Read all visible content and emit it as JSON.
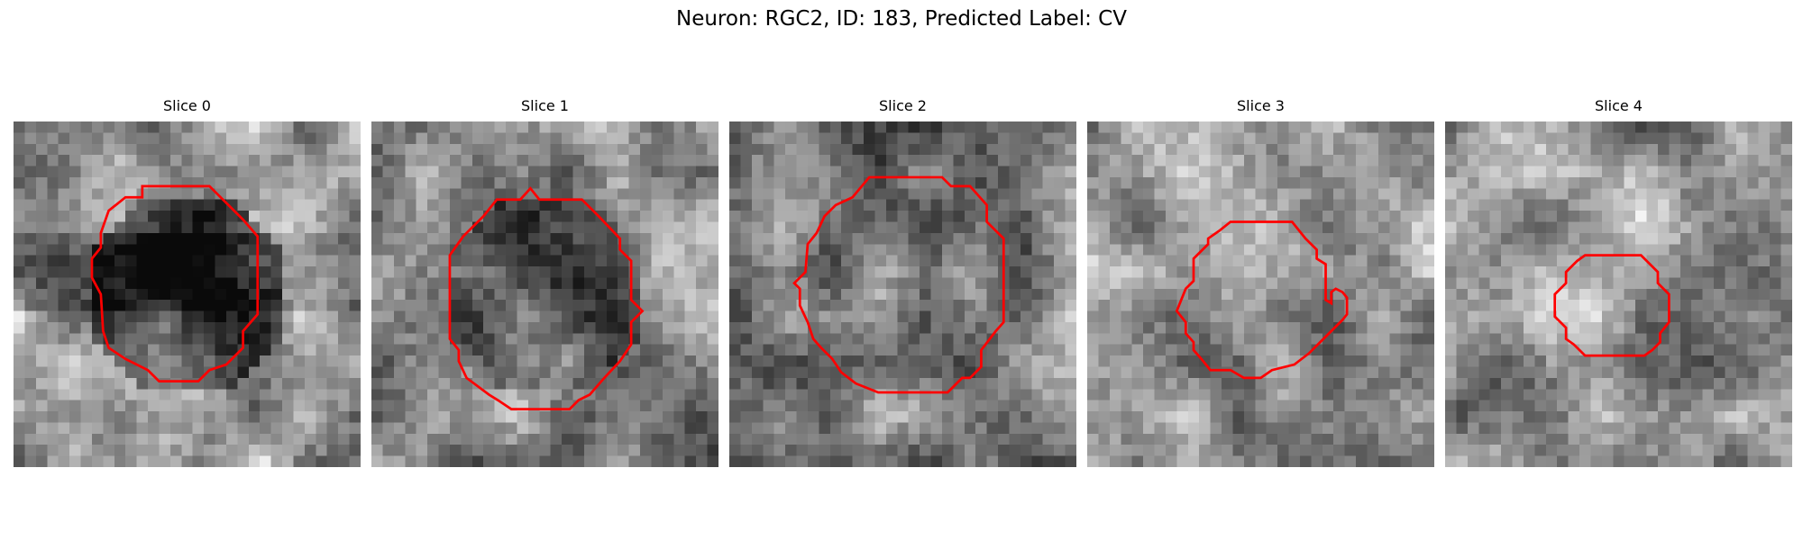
{
  "figure": {
    "title": "Neuron: RGC2, ID: 183, Predicted Label: CV"
  },
  "panels": [
    {
      "label": "Slice 0",
      "seed": 11,
      "center_lum": 0.28,
      "surround_lum": 0.62,
      "dark_band": true
    },
    {
      "label": "Slice 1",
      "seed": 23,
      "center_lum": 0.38,
      "surround_lum": 0.55,
      "dark_band": false
    },
    {
      "label": "Slice 2",
      "seed": 37,
      "center_lum": 0.45,
      "surround_lum": 0.5,
      "dark_band": false
    },
    {
      "label": "Slice 3",
      "seed": 51,
      "center_lum": 0.55,
      "surround_lum": 0.58,
      "dark_band": false
    },
    {
      "label": "Slice 4",
      "seed": 73,
      "center_lum": 0.6,
      "surround_lum": 0.55,
      "dark_band": false
    }
  ],
  "contour_color": "#ff0000",
  "colormap": "gray"
}
